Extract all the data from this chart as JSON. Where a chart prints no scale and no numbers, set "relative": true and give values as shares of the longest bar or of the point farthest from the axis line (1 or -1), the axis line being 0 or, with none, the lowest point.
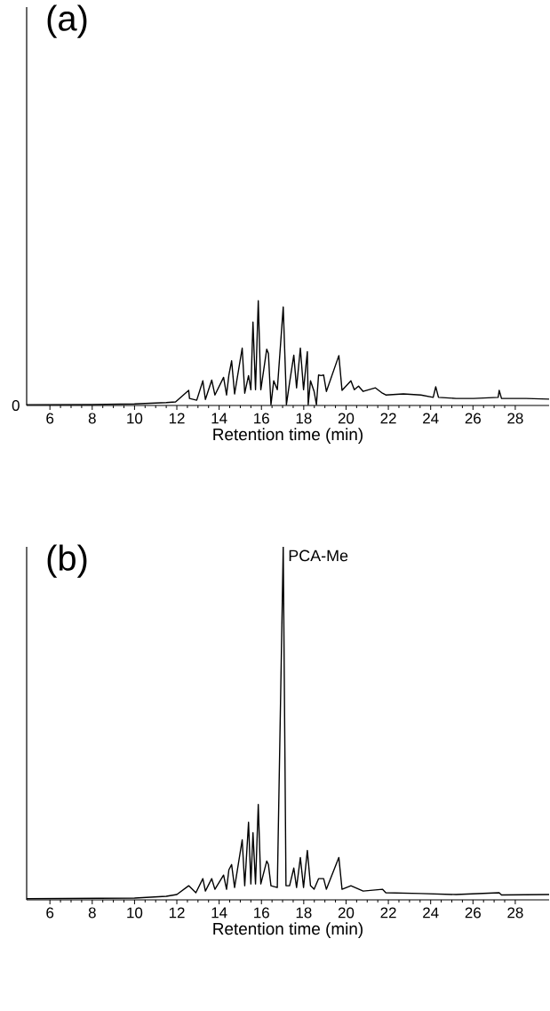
{
  "chart_data": [
    {
      "type": "line",
      "title": "(a)",
      "xlabel": "Retention time (min)",
      "color": "#000000",
      "relative": true,
      "xlim": [
        4.9,
        29.6
      ],
      "xticks": [
        6,
        8,
        10,
        12,
        14,
        16,
        18,
        20,
        22,
        24,
        26,
        28
      ],
      "annotations": [
        "0"
      ],
      "x": [
        4.9,
        8.0,
        10.0,
        11.5,
        11.94,
        12.56,
        12.6,
        12.94,
        13.23,
        13.35,
        13.65,
        13.8,
        14.21,
        14.35,
        14.46,
        14.59,
        14.73,
        15.09,
        15.21,
        15.39,
        15.5,
        15.6,
        15.72,
        15.85,
        15.97,
        16.25,
        16.33,
        16.45,
        16.58,
        16.75,
        17.03,
        17.16,
        17.18,
        17.33,
        17.53,
        17.66,
        17.84,
        17.99,
        18.17,
        18.21,
        18.32,
        18.49,
        18.6,
        18.7,
        18.82,
        18.94,
        19.07,
        19.66,
        19.81,
        20.23,
        20.39,
        20.59,
        20.81,
        21.39,
        21.72,
        21.88,
        22.71,
        23.54,
        24.12,
        24.24,
        24.37,
        25.2,
        26.03,
        27.19,
        27.24,
        27.35,
        28.51,
        29.6
      ],
      "values": [
        0.007,
        0.008,
        0.015,
        0.027,
        0.034,
        0.144,
        0.067,
        0.05,
        0.235,
        0.057,
        0.242,
        0.1,
        0.268,
        0.1,
        0.29,
        0.426,
        0.11,
        0.547,
        0.117,
        0.285,
        0.15,
        0.795,
        0.15,
        1.0,
        0.15,
        0.537,
        0.497,
        0.007,
        0.235,
        0.15,
        0.94,
        0.168,
        0.007,
        0.218,
        0.48,
        0.168,
        0.547,
        0.15,
        0.513,
        0.007,
        0.235,
        0.134,
        0.007,
        0.29,
        0.285,
        0.29,
        0.134,
        0.476,
        0.144,
        0.235,
        0.15,
        0.185,
        0.134,
        0.168,
        0.117,
        0.1,
        0.11,
        0.1,
        0.077,
        0.178,
        0.077,
        0.067,
        0.067,
        0.077,
        0.144,
        0.067,
        0.067,
        0.06
      ]
    },
    {
      "type": "line",
      "title": "(b)",
      "xlabel": "Retention time (min)",
      "color": "#000000",
      "relative": true,
      "xlim": [
        4.9,
        29.6
      ],
      "xticks": [
        6,
        8,
        10,
        12,
        14,
        16,
        18,
        20,
        22,
        24,
        26,
        28
      ],
      "annotations": [
        {
          "text": "PCA-Me",
          "x": 17.03,
          "y": 1.0
        }
      ],
      "x": [
        4.9,
        10.0,
        11.5,
        12.0,
        12.56,
        12.9,
        13.23,
        13.35,
        13.65,
        13.8,
        14.21,
        14.35,
        14.46,
        14.59,
        14.73,
        15.09,
        15.21,
        15.39,
        15.5,
        15.6,
        15.72,
        15.85,
        15.97,
        16.25,
        16.33,
        16.45,
        16.75,
        17.03,
        17.16,
        17.33,
        17.53,
        17.66,
        17.84,
        17.99,
        18.17,
        18.32,
        18.49,
        18.7,
        18.94,
        19.07,
        19.66,
        19.81,
        20.23,
        20.81,
        21.72,
        21.88,
        23.54,
        25.2,
        27.24,
        27.35,
        29.6
      ],
      "values": [
        0.003,
        0.005,
        0.01,
        0.015,
        0.04,
        0.02,
        0.06,
        0.025,
        0.06,
        0.03,
        0.07,
        0.03,
        0.085,
        0.1,
        0.035,
        0.17,
        0.04,
        0.22,
        0.045,
        0.19,
        0.045,
        0.27,
        0.045,
        0.11,
        0.1,
        0.04,
        0.035,
        1.0,
        0.04,
        0.04,
        0.09,
        0.035,
        0.12,
        0.035,
        0.14,
        0.04,
        0.03,
        0.06,
        0.06,
        0.03,
        0.12,
        0.03,
        0.04,
        0.025,
        0.03,
        0.02,
        0.018,
        0.015,
        0.02,
        0.014,
        0.015
      ]
    }
  ]
}
